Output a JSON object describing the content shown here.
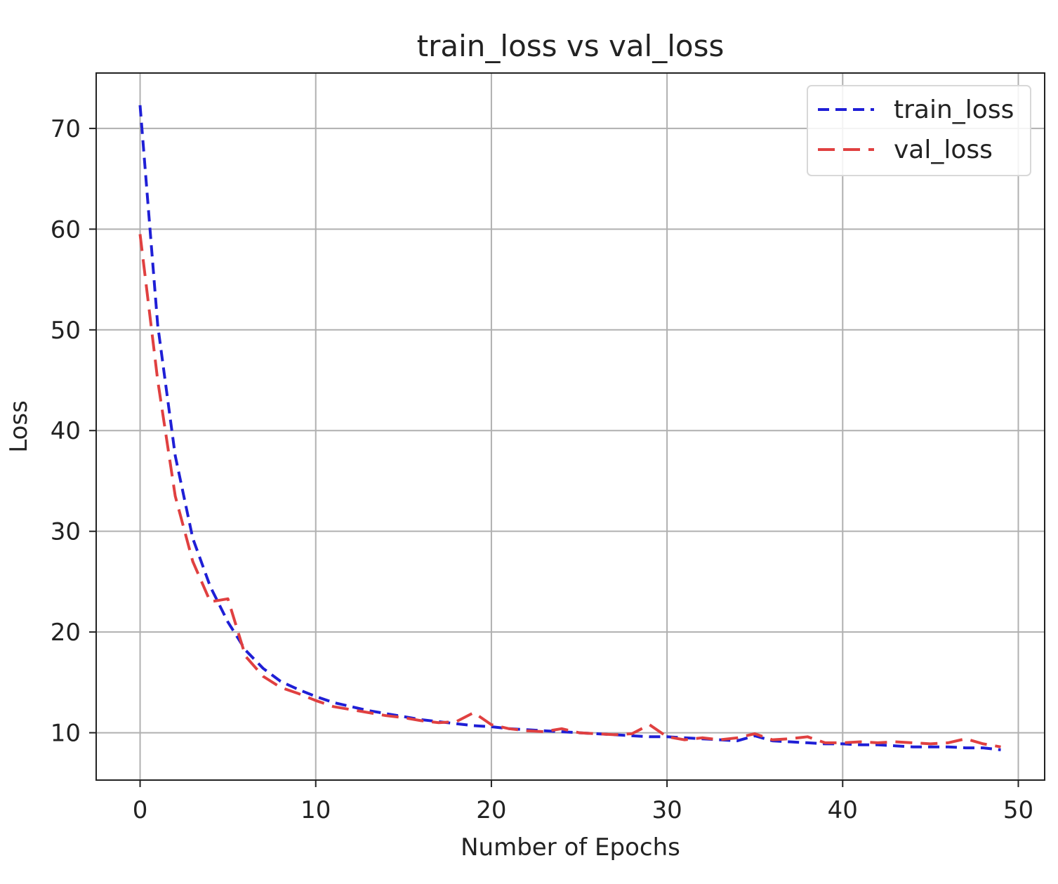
{
  "chart_data": {
    "type": "line",
    "title": "train_loss vs val_loss",
    "xlabel": "Number of Epochs",
    "ylabel": "Loss",
    "xlim": [
      -2.5,
      51.5
    ],
    "ylim": [
      5.3,
      75.5
    ],
    "xticks": [
      0,
      10,
      20,
      30,
      40,
      50
    ],
    "yticks": [
      10,
      20,
      30,
      40,
      50,
      60,
      70
    ],
    "grid": true,
    "legend": "top-right",
    "x": [
      0,
      1,
      2,
      3,
      4,
      5,
      6,
      7,
      8,
      9,
      10,
      11,
      12,
      13,
      14,
      15,
      16,
      17,
      18,
      19,
      20,
      21,
      22,
      23,
      24,
      25,
      26,
      27,
      28,
      29,
      30,
      31,
      32,
      33,
      34,
      35,
      36,
      37,
      38,
      39,
      40,
      41,
      42,
      43,
      44,
      45,
      46,
      47,
      48,
      49
    ],
    "series": [
      {
        "name": "train_loss",
        "color": "#1f1fd6",
        "dash": "dashed-short",
        "values": [
          72.3,
          50.5,
          37.5,
          29.3,
          24.5,
          21.0,
          18.2,
          16.4,
          15.1,
          14.3,
          13.6,
          13.0,
          12.6,
          12.2,
          11.9,
          11.6,
          11.3,
          11.1,
          10.9,
          10.7,
          10.6,
          10.4,
          10.3,
          10.2,
          10.1,
          10.0,
          9.9,
          9.8,
          9.7,
          9.6,
          9.6,
          9.5,
          9.4,
          9.3,
          9.2,
          9.7,
          9.2,
          9.1,
          9.0,
          8.9,
          8.9,
          8.8,
          8.8,
          8.7,
          8.6,
          8.6,
          8.6,
          8.5,
          8.5,
          8.3
        ]
      },
      {
        "name": "val_loss",
        "color": "#e04040",
        "dash": "dashed-long",
        "values": [
          59.5,
          45.0,
          33.5,
          27.0,
          23.0,
          23.3,
          17.6,
          15.6,
          14.5,
          13.9,
          13.2,
          12.6,
          12.3,
          12.0,
          11.7,
          11.5,
          11.2,
          11.0,
          11.1,
          12.0,
          10.8,
          10.4,
          10.2,
          10.1,
          10.4,
          10.0,
          9.9,
          9.8,
          9.9,
          10.8,
          9.6,
          9.3,
          9.5,
          9.3,
          9.5,
          9.9,
          9.3,
          9.4,
          9.6,
          9.0,
          9.0,
          9.1,
          9.0,
          9.1,
          9.0,
          8.9,
          9.0,
          9.4,
          8.9,
          8.6
        ]
      }
    ]
  }
}
